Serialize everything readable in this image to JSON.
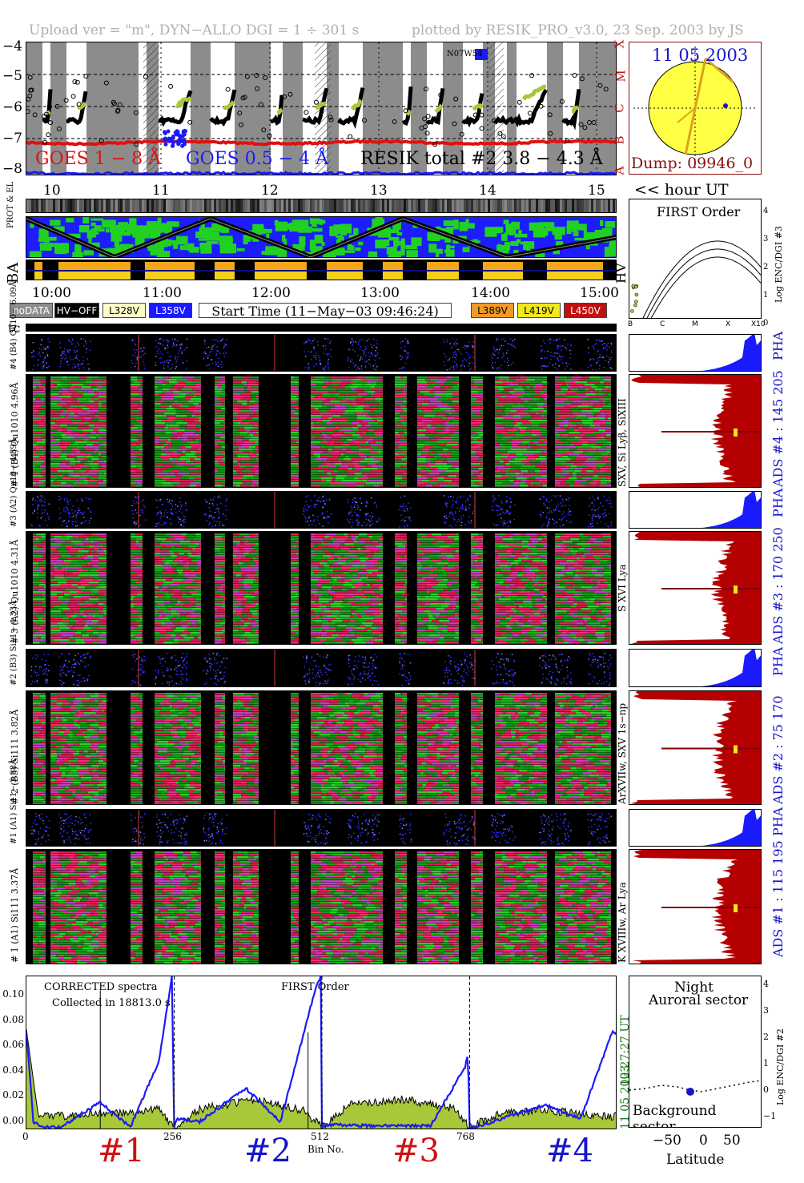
{
  "header": {
    "left": "Upload ver = \"m\", DYN−ALLO DGI =   1 ÷ 301 s",
    "right": "plotted by RESIK_PRO_v3.0, 23 Sep. 2003 by JS"
  },
  "goes": {
    "y_ticks": [
      "−4",
      "−5",
      "−6",
      "−7",
      "−8"
    ],
    "class_letters": [
      "X",
      "M",
      "C",
      "B",
      "A"
    ],
    "label_1_8": "GOES 1 − 8 Å",
    "label_05_4": "GOES 0.5 − 4 Å",
    "label_resik": "RESIK total #2  3.8 − 4.3 Å",
    "hour_ticks": [
      "10",
      "11",
      "12",
      "13",
      "14",
      "15"
    ],
    "hour_label": "<< hour UT",
    "marker": "N07W54",
    "colors": {
      "goes18": "#e01010",
      "goes054": "#1a1aff",
      "resik": "#000000",
      "bands": "#8c8c8c"
    }
  },
  "sun": {
    "date": "11 05 2003",
    "dump": "Dump: 09946_0"
  },
  "strips": {
    "label_protel": "PROT & EL",
    "label_ba": "BA",
    "time_ticks": [
      "10:00",
      "11:00",
      "12:00",
      "13:00",
      "14:00",
      "15:00"
    ]
  },
  "hv": {
    "title": "FIRST Order",
    "label": "HV",
    "x_ticks": [
      "B",
      "C",
      "M",
      "X",
      "X10"
    ],
    "y_ticks": [
      "4",
      "3",
      "2",
      "1",
      "0"
    ],
    "ylabel": "Log ENC/DGI #3"
  },
  "legend": {
    "nodata": "noDATA",
    "hvoff": "HV−OFF",
    "v1": "L328V",
    "v2": "L358V",
    "start": "Start Time (11−May−03 09:46:24)",
    "v3": "L389V",
    "v4": "L419V",
    "v5": "L450V"
  },
  "tc_label": "tc",
  "channels": [
    {
      "pha": "#4 (B4) Qu10− 6.09Å",
      "spec": "# 4 (B4) Qu1010 4.96Å",
      "lines": "SXV, Si Lyβ, SiXIII",
      "ads": "ADS #4 :  145 205",
      "pha_tag": "PHA"
    },
    {
      "pha": "#3 (A2) Qu10− 4.89Å",
      "spec": "# 3 (A2) Qu1010 4.31Å",
      "lines": "S XVI Lya",
      "ads": "ADS #3 :  170 250",
      "pha_tag": "PHA"
    },
    {
      "pha": "#2 (B3) Si11− 4.33Å",
      "spec": "# 2 (B3) Si111 3.82Å",
      "lines": "ArXVIIw, SXV 1s−np",
      "ads": "ADS #2 :  75 170",
      "pha_tag": "PHA"
    },
    {
      "pha": "#1 (A1) Si11− 3.88Å",
      "spec": "# 1 (A1) Si111 3.37Å",
      "lines": "K XVIIIw, Ar Lya",
      "ads": "ADS #1 :  115 195",
      "pha_tag": "PHA"
    }
  ],
  "spectrum": {
    "label1": "CORRECTED spectra",
    "label2": "Collected in 18813.0 s",
    "label3": "FIRST Order",
    "y_ticks": [
      "0.10",
      "0.08",
      "0.06",
      "0.04",
      "0.02",
      "0.00"
    ],
    "x_ticks": [
      "0",
      "256",
      "512",
      "768"
    ],
    "xlabel": "Bin No.",
    "time_vertical": "12:27:27 UT",
    "date_vertical": "11 05 2003",
    "orders": [
      "#1",
      "#2",
      "#3",
      "#4"
    ],
    "order_colors": [
      "#d01010",
      "#1515c8",
      "#d01010",
      "#1515c8"
    ]
  },
  "orbit": {
    "night": "Night",
    "auroral": "Auroral sector",
    "background": "Background sector",
    "x_ticks": [
      "−50",
      "0",
      "50"
    ],
    "xlabel": "Latitude",
    "y_ticks": [
      "4",
      "3",
      "2",
      "1",
      "0",
      "−1"
    ],
    "ylabel": "Log ENC/DGI #2"
  },
  "chart_data": {
    "type": "line",
    "title": "CORRECTED spectra",
    "xlabel": "Bin No.",
    "ylabel": "",
    "xlim": [
      0,
      1024
    ],
    "ylim": [
      0,
      0.11
    ],
    "series": [
      {
        "name": "",
        "x": [
          0,
          20,
          60,
          120,
          180,
          230,
          256,
          300,
          400,
          480,
          512,
          560,
          650,
          740,
          768,
          820,
          900,
          1000
        ],
        "values": [
          0.072,
          0.012,
          0.01,
          0.012,
          0.013,
          0.015,
          0.002,
          0.015,
          0.022,
          0.014,
          0.002,
          0.018,
          0.022,
          0.016,
          0.002,
          0.012,
          0.014,
          0.01
        ]
      },
      {
        "name": "",
        "x": [
          0,
          12,
          30,
          60,
          128,
          180,
          230,
          252,
          256,
          260,
          300,
          380,
          440,
          500,
          510,
          512,
          520,
          600,
          700,
          760,
          765,
          768,
          780,
          850,
          900,
          960,
          1015
        ],
        "values": [
          0.07,
          0.006,
          0.002,
          0.002,
          0.02,
          0.002,
          0.05,
          0.11,
          0.002,
          0.008,
          0.006,
          0.03,
          0.006,
          0.1,
          0.11,
          0.002,
          0.004,
          0.003,
          0.003,
          0.045,
          0.055,
          0.002,
          0.002,
          0.012,
          0.018,
          0.008,
          0.07
        ]
      }
    ]
  }
}
